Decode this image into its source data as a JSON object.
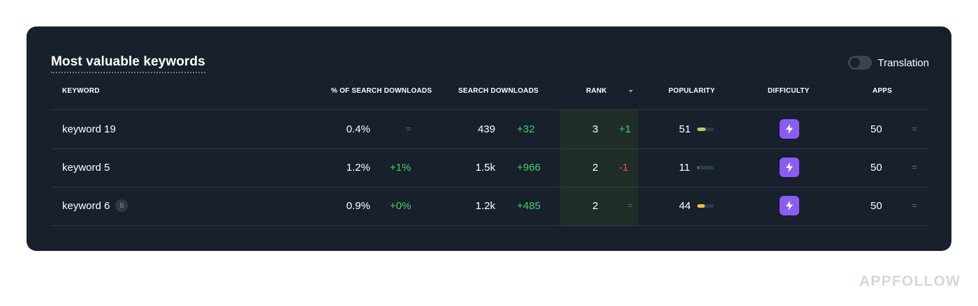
{
  "card": {
    "title": "Most valuable keywords",
    "translation_label": "Translation",
    "translation_on": false
  },
  "table": {
    "headers": {
      "keyword": "KEYWORD",
      "pct_search_downloads": "% OF SEARCH DOWNLOADS",
      "search_downloads": "SEARCH DOWNLOADS",
      "rank": "RANK",
      "popularity": "POPULARITY",
      "difficulty": "DIFFICULTY",
      "apps": "APPS"
    },
    "sort": {
      "column": "rank",
      "direction": "desc",
      "icon": "caret-down-icon"
    },
    "rows": [
      {
        "keyword": "keyword 19",
        "badge": "",
        "pct": "0.4%",
        "pct_change": "=",
        "pct_change_type": "eq",
        "downloads": "439",
        "downloads_change": "+32",
        "downloads_change_type": "pos",
        "rank": "3",
        "rank_change": "+1",
        "rank_change_type": "pos",
        "popularity": "51",
        "popularity_level": 0.5,
        "popularity_color": "#a3d95b",
        "difficulty_icon": "lightning-icon",
        "apps": "50",
        "apps_change": "=",
        "apps_change_type": "eq"
      },
      {
        "keyword": "keyword 5",
        "badge": "",
        "pct": "1.2%",
        "pct_change": "+1%",
        "pct_change_type": "pos",
        "downloads": "1.5k",
        "downloads_change": "+966",
        "downloads_change_type": "pos",
        "rank": "2",
        "rank_change": "-1",
        "rank_change_type": "neg",
        "popularity": "11",
        "popularity_level": 0.1,
        "popularity_color": "#ef4a57",
        "difficulty_icon": "lightning-icon",
        "apps": "50",
        "apps_change": "=",
        "apps_change_type": "eq"
      },
      {
        "keyword": "keyword 6",
        "badge": "B",
        "pct": "0.9%",
        "pct_change": "+0%",
        "pct_change_type": "pos",
        "downloads": "1.2k",
        "downloads_change": "+485",
        "downloads_change_type": "pos",
        "rank": "2",
        "rank_change": "=",
        "rank_change_type": "eq",
        "popularity": "44",
        "popularity_level": 0.44,
        "popularity_color": "#f2c12e",
        "difficulty_icon": "lightning-icon",
        "apps": "50",
        "apps_change": "=",
        "apps_change_type": "eq"
      }
    ]
  },
  "colors": {
    "card_bg": "#18202b",
    "positive": "#3fcf6a",
    "negative": "#ef4a57",
    "difficulty": "#8a5cf6"
  },
  "watermark": "APPFOLLOW"
}
